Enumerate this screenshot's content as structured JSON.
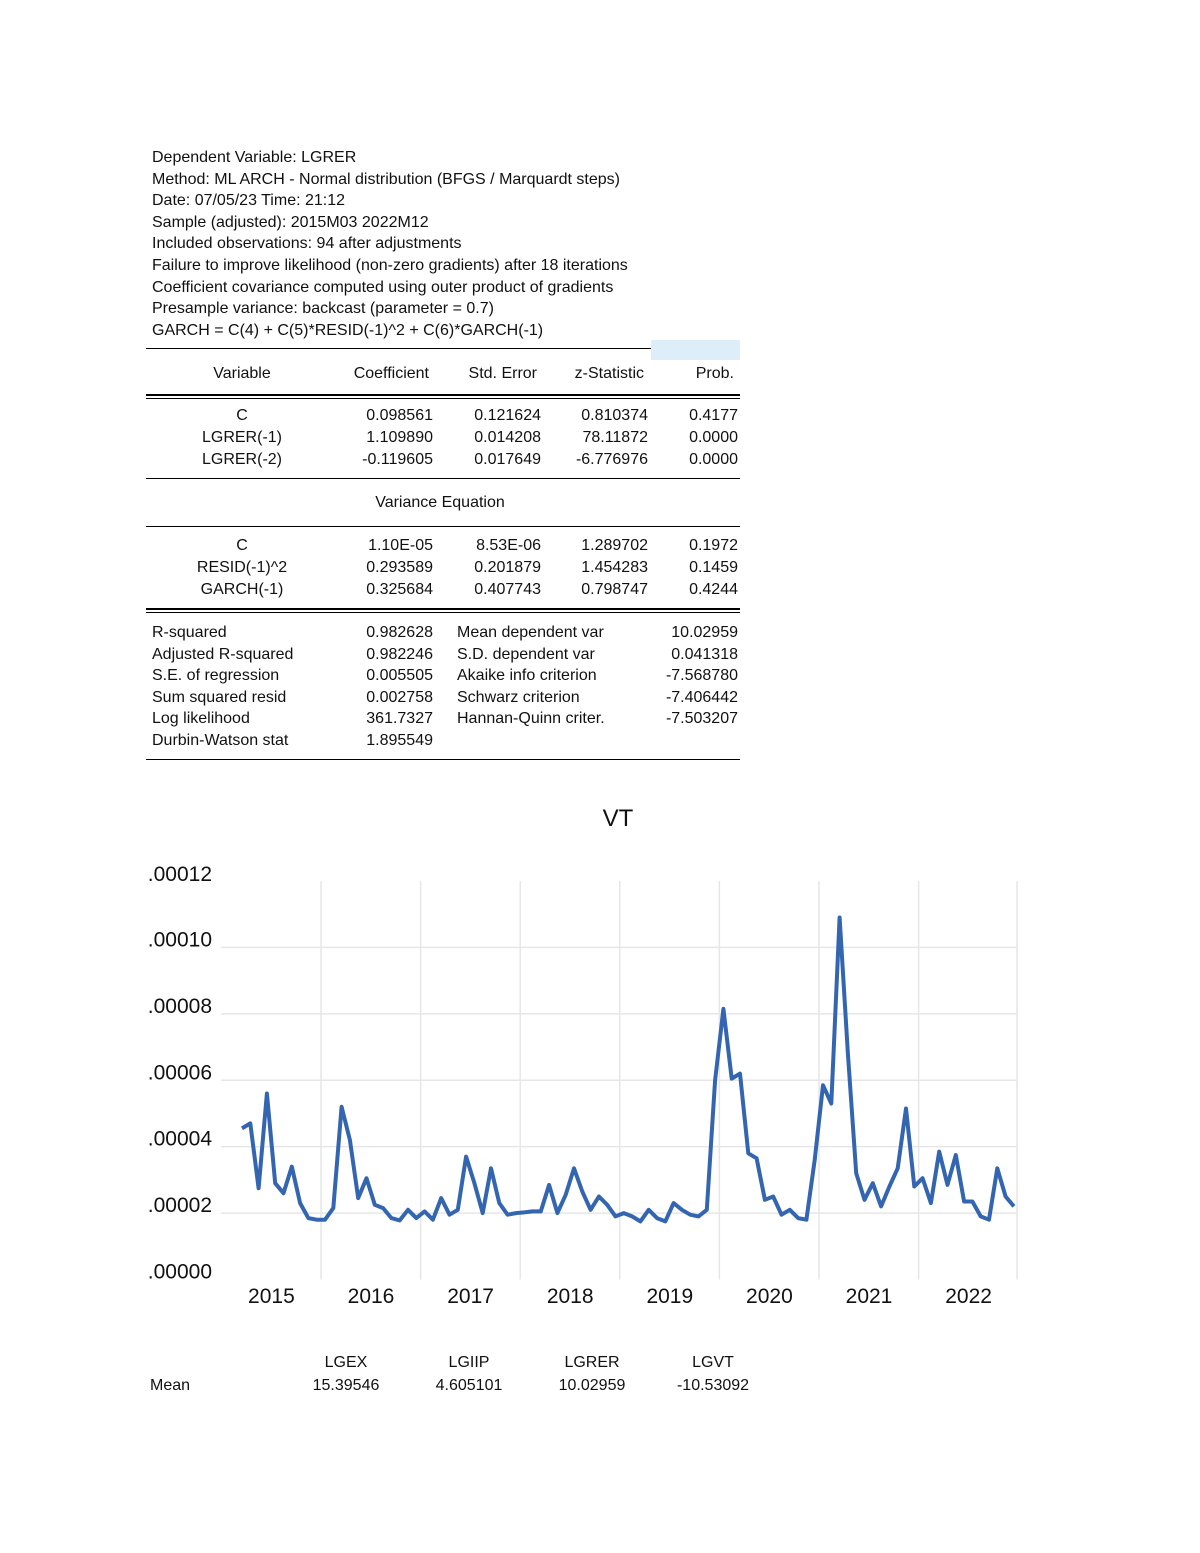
{
  "header": [
    "Dependent Variable: LGRER",
    "Method: ML ARCH - Normal distribution (BFGS / Marquardt steps)",
    "Date: 07/05/23   Time: 21:12",
    "Sample (adjusted): 2015M03 2022M12",
    "Included observations: 94 after adjustments",
    "Failure to improve likelihood (non-zero gradients) after 18 iterations",
    "Coefficient covariance computed using outer product of gradients",
    "Presample variance: backcast (parameter = 0.7)",
    "GARCH = C(4) + C(5)*RESID(-1)^2 + C(6)*GARCH(-1)"
  ],
  "table": {
    "columns": [
      "Variable",
      "Coefficient",
      "Std. Error",
      "z-Statistic",
      "Prob."
    ],
    "mean_rows": [
      [
        "C",
        "0.098561",
        "0.121624",
        "0.810374",
        "0.4177"
      ],
      [
        "LGRER(-1)",
        "1.109890",
        "0.014208",
        "78.11872",
        "0.0000"
      ],
      [
        "LGRER(-2)",
        "-0.119605",
        "0.017649",
        "-6.776976",
        "0.0000"
      ]
    ],
    "variance_title": "Variance Equation",
    "variance_rows": [
      [
        "C",
        "1.10E-05",
        "8.53E-06",
        "1.289702",
        "0.1972"
      ],
      [
        "RESID(-1)^2",
        "0.293589",
        "0.201879",
        "1.454283",
        "0.1459"
      ],
      [
        "GARCH(-1)",
        "0.325684",
        "0.407743",
        "0.798747",
        "0.4244"
      ]
    ],
    "stats": [
      [
        "R-squared",
        "0.982628",
        "Mean dependent var",
        "10.02959"
      ],
      [
        "Adjusted R-squared",
        "0.982246",
        "S.D. dependent var",
        "0.041318"
      ],
      [
        "S.E. of regression",
        "0.005505",
        "Akaike info criterion",
        "-7.568780"
      ],
      [
        "Sum squared resid",
        "0.002758",
        "Schwarz criterion",
        "-7.406442"
      ],
      [
        "Log likelihood",
        "361.7327",
        "Hannan-Quinn criter.",
        "-7.503207"
      ],
      [
        "Durbin-Watson stat",
        "1.895549",
        "",
        ""
      ]
    ]
  },
  "chart_data": {
    "type": "line",
    "title": "VT",
    "xlabel": "",
    "ylabel": "",
    "ylim": [
      0,
      0.00012
    ],
    "yticks": [
      ".00000",
      ".00002",
      ".00004",
      ".00006",
      ".00008",
      ".00010",
      ".00012"
    ],
    "xticks": [
      "2015",
      "2016",
      "2017",
      "2018",
      "2019",
      "2020",
      "2021",
      "2022"
    ],
    "grid": true,
    "color": "#3465b0",
    "x": [
      "2015M03",
      "2015M04",
      "2015M05",
      "2015M06",
      "2015M07",
      "2015M08",
      "2015M09",
      "2015M10",
      "2015M11",
      "2015M12",
      "2016M01",
      "2016M02",
      "2016M03",
      "2016M04",
      "2016M05",
      "2016M06",
      "2016M07",
      "2016M08",
      "2016M09",
      "2016M10",
      "2016M11",
      "2016M12",
      "2017M01",
      "2017M02",
      "2017M03",
      "2017M04",
      "2017M05",
      "2017M06",
      "2017M07",
      "2017M08",
      "2017M09",
      "2017M10",
      "2017M11",
      "2017M12",
      "2018M01",
      "2018M02",
      "2018M03",
      "2018M04",
      "2018M05",
      "2018M06",
      "2018M07",
      "2018M08",
      "2018M09",
      "2018M10",
      "2018M11",
      "2018M12",
      "2019M01",
      "2019M02",
      "2019M03",
      "2019M04",
      "2019M05",
      "2019M06",
      "2019M07",
      "2019M08",
      "2019M09",
      "2019M10",
      "2019M11",
      "2019M12",
      "2020M01",
      "2020M02",
      "2020M03",
      "2020M04",
      "2020M05",
      "2020M06",
      "2020M07",
      "2020M08",
      "2020M09",
      "2020M10",
      "2020M11",
      "2020M12",
      "2021M01",
      "2021M02",
      "2021M03",
      "2021M04",
      "2021M05",
      "2021M06",
      "2021M07",
      "2021M08",
      "2021M09",
      "2021M10",
      "2021M11",
      "2021M12",
      "2022M01",
      "2022M02",
      "2022M03",
      "2022M04",
      "2022M05",
      "2022M06",
      "2022M07",
      "2022M08",
      "2022M09",
      "2022M10",
      "2022M11",
      "2022M12"
    ],
    "values": [
      4.55e-05,
      4.7e-05,
      2.75e-05,
      5.6e-05,
      2.9e-05,
      2.6e-05,
      3.4e-05,
      2.3e-05,
      1.85e-05,
      1.8e-05,
      1.8e-05,
      2.15e-05,
      5.2e-05,
      4.2e-05,
      2.45e-05,
      3.05e-05,
      2.25e-05,
      2.15e-05,
      1.85e-05,
      1.78e-05,
      2.1e-05,
      1.85e-05,
      2.05e-05,
      1.8e-05,
      2.45e-05,
      1.95e-05,
      2.1e-05,
      3.7e-05,
      2.9e-05,
      2e-05,
      3.35e-05,
      2.3e-05,
      1.95e-05,
      2e-05,
      2.02e-05,
      2.05e-05,
      2.05e-05,
      2.85e-05,
      2e-05,
      2.55e-05,
      3.35e-05,
      2.65e-05,
      2.1e-05,
      2.5e-05,
      2.25e-05,
      1.9e-05,
      2e-05,
      1.9e-05,
      1.75e-05,
      2.1e-05,
      1.85e-05,
      1.75e-05,
      2.3e-05,
      2.1e-05,
      1.95e-05,
      1.9e-05,
      2.1e-05,
      6e-05,
      8.15e-05,
      6.05e-05,
      6.2e-05,
      3.8e-05,
      3.65e-05,
      2.4e-05,
      2.5e-05,
      1.95e-05,
      2.1e-05,
      1.85e-05,
      1.8e-05,
      3.6e-05,
      5.85e-05,
      5.3e-05,
      0.000109,
      6.8e-05,
      3.2e-05,
      2.4e-05,
      2.9e-05,
      2.2e-05,
      2.8e-05,
      3.35e-05,
      5.15e-05,
      2.8e-05,
      3.05e-05,
      2.3e-05,
      3.85e-05,
      2.85e-05,
      3.75e-05,
      2.35e-05,
      2.35e-05,
      1.9e-05,
      1.8e-05,
      3.35e-05,
      2.5e-05,
      2.2e-05
    ]
  },
  "means": {
    "row_label": "Mean",
    "columns": [
      "LGEX",
      "LGIIP",
      "LGRER",
      "LGVT"
    ],
    "values": [
      "15.39546",
      "4.605101",
      "10.02959",
      "-10.53092"
    ]
  }
}
